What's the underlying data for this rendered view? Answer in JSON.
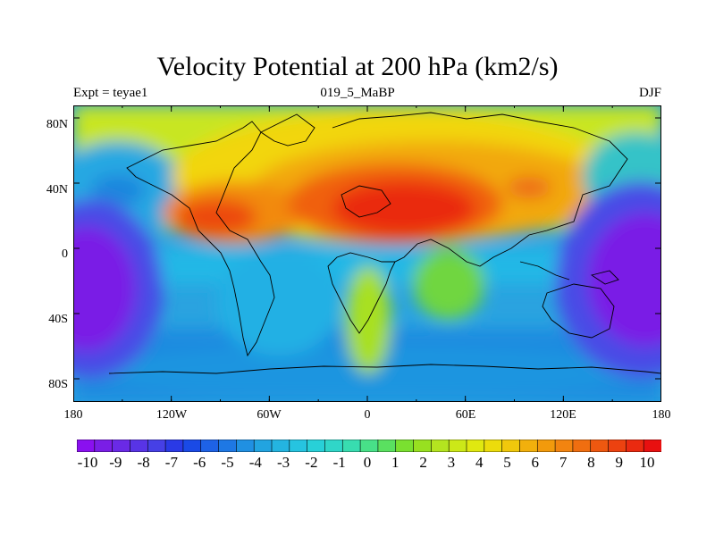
{
  "title": "Velocity Potential at 200 hPa (km2/s)",
  "subtitle_left": "Expt = teyae1",
  "subtitle_center": "019_5_MaBP",
  "subtitle_right": "DJF",
  "y_ticks": [
    "80N",
    "40N",
    "0",
    "40S",
    "80S"
  ],
  "x_ticks": [
    "180",
    "120W",
    "60W",
    "0",
    "60E",
    "120E",
    "180"
  ],
  "colorbar_labels": [
    "-10",
    "-9",
    "-8",
    "-7",
    "-6",
    "-5",
    "-4",
    "-3",
    "-2",
    "-1",
    "0",
    "1",
    "2",
    "3",
    "4",
    "5",
    "6",
    "7",
    "8",
    "9",
    "10"
  ],
  "colors": {
    "ocean_dominant": "#2aa3e0",
    "high_core": "#e81010",
    "low_core": "#7a1ee6"
  }
}
